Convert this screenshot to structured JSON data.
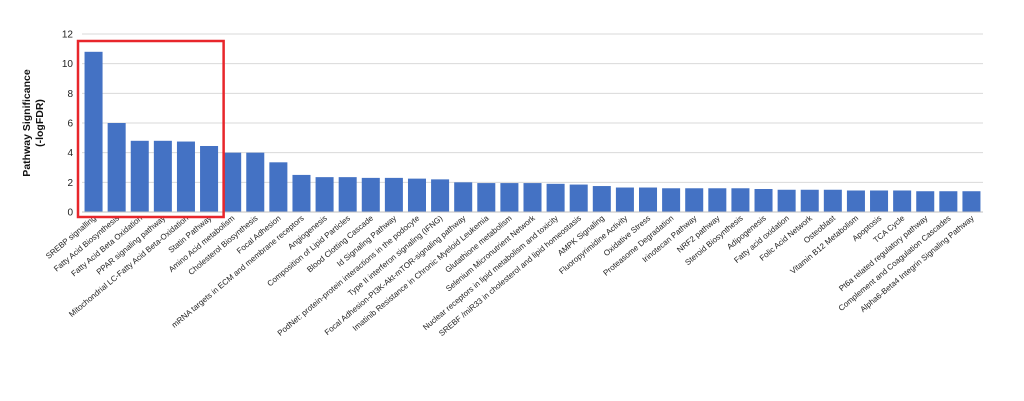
{
  "chart_data": {
    "type": "bar",
    "title": "",
    "xlabel": "",
    "ylabel": "Pathway Significance (-logFDR)",
    "ylabel_lines": [
      "Pathway Significance",
      "(-logFDR)"
    ],
    "ylim": [
      0,
      12
    ],
    "yticks": [
      "0",
      "2",
      "4",
      "6",
      "8",
      "10",
      "12"
    ],
    "grid": true,
    "bar_color": "#4472C4",
    "highlight_color": "#E8262B",
    "highlight_range": [
      0,
      5
    ],
    "categories": [
      "SREBP signalling",
      "Fatty Acid Biosynthesis",
      "Fatty Acid Beta Oxidation",
      "PPAR signaling pathway",
      "Mitochondrial LC-Fatty Acid Beta-Oxidation",
      "Statin Pathway",
      "Amino Acid metabolism",
      "Cholesterol Biosynthesis",
      "Focal Adhesion",
      "mRNA targets in ECM and membrane receptors",
      "Angiogenesis",
      "Composition of Lipid Particles",
      "Blood Clotting Cascade",
      "Id Signaling Pathway",
      "PodNet: protein-protein interactions in the podocyte",
      "Type II interferon signaling (IFNG)",
      "Focal Adhesion-PI3K-Akt-mTOR-signaling pathway",
      "Imatinib Resistance in Chronic Myeloid Leukemia",
      "Glutathione metabolism",
      "Selenium Micronutrient Network",
      "Nuclear receptors in lipid metabolism and toxicity",
      "SREBF /miR33 in cholesterol and lipid homeostasis",
      "AMPK Signaling",
      "Fluoropyrimidine Activity",
      "Oxidative Stress",
      "Proteasome Degradation",
      "Irinotecan Pathway",
      "NRF2 pathway",
      "Steroid Biosynthesis",
      "Adipogenesis",
      "Fatty acid oxidation",
      "Folic Acid Network",
      "Osteoblast",
      "Vitamin B12 Metabolism",
      "Apoptosis",
      "TCA Cycle",
      "Pt6a related regulatory pathway",
      "Complement and Coagulation Cascades",
      "Alpha6-Beta4 Integrin Signaling Pathway"
    ],
    "values": [
      10.8,
      6.0,
      4.8,
      4.8,
      4.75,
      4.45,
      4.0,
      4.0,
      3.35,
      2.5,
      2.35,
      2.35,
      2.3,
      2.3,
      2.25,
      2.2,
      2.0,
      1.95,
      1.95,
      1.95,
      1.9,
      1.85,
      1.75,
      1.65,
      1.65,
      1.6,
      1.6,
      1.6,
      1.6,
      1.55,
      1.5,
      1.5,
      1.5,
      1.45,
      1.45,
      1.45,
      1.4,
      1.4,
      1.4
    ]
  }
}
